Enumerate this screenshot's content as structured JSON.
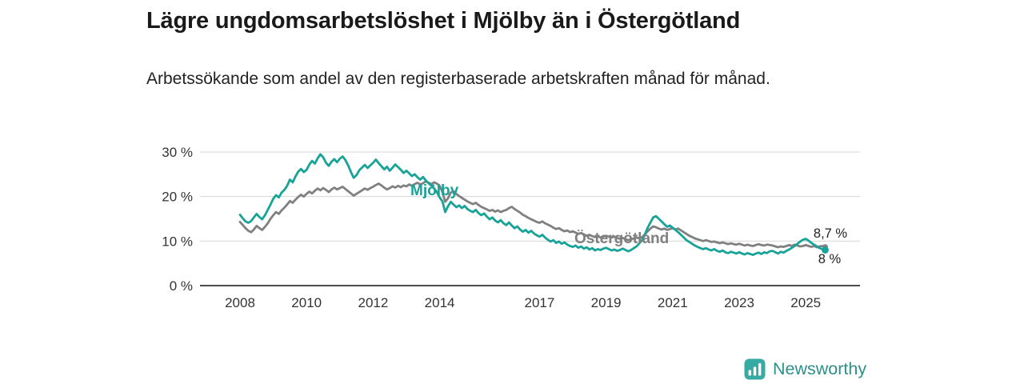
{
  "title": "Lägre ungdomsarbetslöshet i Mjölby än i Östergötland",
  "subtitle": "Arbetssökande som andel av den registerbaserade arbetskraften månad för månad.",
  "branding": {
    "logo_text": "Newsworthy",
    "logo_icon": "bar-chart-icon",
    "text_color": "#2E8F8A",
    "icon_color": "#35ABA4"
  },
  "chart_data": {
    "type": "line",
    "title": "Lägre ungdomsarbetslöshet i Mjölby än i Östergötland",
    "subtitle": "Arbetssökande som andel av den registerbaserade arbetskraften månad för månad.",
    "x_interval": "monthly",
    "x_range_note": "Jan 2008 – Aug 2025, estimated monthly values",
    "xlabel": "",
    "ylabel": "",
    "ylim": [
      0,
      32
    ],
    "grid": "horizontal",
    "legend_position": "inline-labels",
    "y_ticks": [
      0,
      10,
      20,
      30
    ],
    "y_tick_labels": [
      "0 %",
      "10 %",
      "20 %",
      "30 %"
    ],
    "x_ticks": [
      2008,
      2010,
      2012,
      2014,
      2017,
      2019,
      2021,
      2023,
      2025
    ],
    "x_tick_labels": [
      "2008",
      "2010",
      "2012",
      "2014",
      "2017",
      "2019",
      "2021",
      "2023",
      "2025"
    ],
    "series": [
      {
        "name": "Mjölby",
        "color": "#17A398",
        "end_label": "8 %",
        "last_value": 8.0,
        "values": [
          15.9,
          15.1,
          14.4,
          14.1,
          14.5,
          15.3,
          16.1,
          15.4,
          14.9,
          15.8,
          17.0,
          18.2,
          19.5,
          20.3,
          19.8,
          20.9,
          21.5,
          22.4,
          23.8,
          23.2,
          24.5,
          25.6,
          26.2,
          25.5,
          26.0,
          27.2,
          28.0,
          27.4,
          28.6,
          29.5,
          28.8,
          27.6,
          26.9,
          27.8,
          28.4,
          27.7,
          28.5,
          29.0,
          28.2,
          27.0,
          25.5,
          24.2,
          24.8,
          25.9,
          26.5,
          27.1,
          26.4,
          27.0,
          27.6,
          28.3,
          27.5,
          26.8,
          26.1,
          26.7,
          25.8,
          26.5,
          27.2,
          26.6,
          26.0,
          25.3,
          25.8,
          25.2,
          24.6,
          25.0,
          24.3,
          23.8,
          24.4,
          23.6,
          23.0,
          22.5,
          21.8,
          21.0,
          19.8,
          18.9,
          16.5,
          17.8,
          18.8,
          18.2,
          17.6,
          18.0,
          17.4,
          17.9,
          17.2,
          16.8,
          16.5,
          17.0,
          16.3,
          15.8,
          16.2,
          15.5,
          14.9,
          15.3,
          14.6,
          14.2,
          14.7,
          14.0,
          13.6,
          14.2,
          13.5,
          12.9,
          13.3,
          12.6,
          12.1,
          12.5,
          11.9,
          12.3,
          11.7,
          11.3,
          11.0,
          11.4,
          10.8,
          10.3,
          9.9,
          10.2,
          9.6,
          9.9,
          9.4,
          9.7,
          9.2,
          8.9,
          8.7,
          9.0,
          8.5,
          8.8,
          8.3,
          8.6,
          8.1,
          8.4,
          7.9,
          8.2,
          8.0,
          8.3,
          8.5,
          8.2,
          7.9,
          8.1,
          7.8,
          8.0,
          8.3,
          8.0,
          7.7,
          8.0,
          8.4,
          8.8,
          9.5,
          10.2,
          11.5,
          13.0,
          14.2,
          15.3,
          15.6,
          15.0,
          14.4,
          13.8,
          13.2,
          13.5,
          13.0,
          12.5,
          12.0,
          11.4,
          10.8,
          10.2,
          9.8,
          9.4,
          9.0,
          8.7,
          8.4,
          8.2,
          8.4,
          8.1,
          7.9,
          8.2,
          7.8,
          7.6,
          7.9,
          7.5,
          7.3,
          7.6,
          7.4,
          7.2,
          7.5,
          7.2,
          7.0,
          7.3,
          7.1,
          6.9,
          7.2,
          7.4,
          7.1,
          7.5,
          7.3,
          7.7,
          7.8,
          7.5,
          7.2,
          7.6,
          7.4,
          7.8,
          8.1,
          8.5,
          8.9,
          9.4,
          9.9,
          10.3,
          10.5,
          10.1,
          9.6,
          9.2,
          8.8,
          8.4,
          8.2,
          8.0
        ]
      },
      {
        "name": "Östergötland",
        "color": "#808080",
        "end_label": "8,7 %",
        "last_value": 8.7,
        "values": [
          14.3,
          13.6,
          12.9,
          12.3,
          12.0,
          12.6,
          13.4,
          12.9,
          12.5,
          13.2,
          14.0,
          15.0,
          15.8,
          16.5,
          16.1,
          16.9,
          17.5,
          18.2,
          19.0,
          18.6,
          19.3,
          19.9,
          20.4,
          20.0,
          20.6,
          21.1,
          20.7,
          21.3,
          21.8,
          21.4,
          21.9,
          21.5,
          21.0,
          21.6,
          22.0,
          21.6,
          21.9,
          22.2,
          21.7,
          21.2,
          20.7,
          20.2,
          20.6,
          21.0,
          21.4,
          21.8,
          21.5,
          21.9,
          22.2,
          22.6,
          22.9,
          22.5,
          22.0,
          21.6,
          21.9,
          22.3,
          22.0,
          22.4,
          22.1,
          22.5,
          22.3,
          22.7,
          22.4,
          22.8,
          23.1,
          22.7,
          23.0,
          23.4,
          23.1,
          22.8,
          23.2,
          22.9,
          22.4,
          21.0,
          18.8,
          19.6,
          20.9,
          21.2,
          20.6,
          20.1,
          19.7,
          19.3,
          18.9,
          18.6,
          18.3,
          18.6,
          18.1,
          17.7,
          17.4,
          17.1,
          16.8,
          17.0,
          16.6,
          16.9,
          16.5,
          16.8,
          17.0,
          17.4,
          17.7,
          17.2,
          16.8,
          16.4,
          15.9,
          15.6,
          15.2,
          14.9,
          14.6,
          14.3,
          14.1,
          14.4,
          14.0,
          13.7,
          13.4,
          13.0,
          12.7,
          12.9,
          12.5,
          12.2,
          12.4,
          12.0,
          12.2,
          11.9,
          11.6,
          11.8,
          11.5,
          11.2,
          11.4,
          11.1,
          10.9,
          11.1,
          10.8,
          11.0,
          11.2,
          11.0,
          10.8,
          11.0,
          10.7,
          10.5,
          10.7,
          10.4,
          10.2,
          10.4,
          10.6,
          10.8,
          10.6,
          10.9,
          11.5,
          12.2,
          12.8,
          13.3,
          13.1,
          12.8,
          12.6,
          12.8,
          12.5,
          12.7,
          12.9,
          12.6,
          12.8,
          12.4,
          12.0,
          11.6,
          11.2,
          10.9,
          10.6,
          10.4,
          10.2,
          10.0,
          10.2,
          10.0,
          9.8,
          9.9,
          9.7,
          9.5,
          9.7,
          9.5,
          9.3,
          9.5,
          9.3,
          9.2,
          9.4,
          9.2,
          9.0,
          9.2,
          9.0,
          8.9,
          9.1,
          9.3,
          9.1,
          9.0,
          9.2,
          9.1,
          9.0,
          8.8,
          8.6,
          8.8,
          8.7,
          8.9,
          9.1,
          8.9,
          9.2,
          9.0,
          8.8,
          8.9,
          9.1,
          8.9,
          8.7,
          8.9,
          8.6,
          8.8,
          8.9,
          8.7
        ]
      }
    ]
  }
}
